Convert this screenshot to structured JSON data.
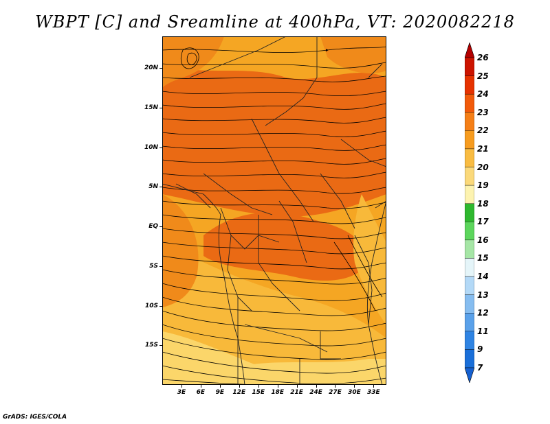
{
  "title": "WBPT [C] and Sreamline at 400hPa, VT: 2020082218",
  "credit": "GrADS: IGES/COLA",
  "map": {
    "lon_range": [
      0,
      35
    ],
    "lat_range": [
      -20,
      24
    ],
    "lat_labels": [
      {
        "lat": 20,
        "text": "20N"
      },
      {
        "lat": 15,
        "text": "15N"
      },
      {
        "lat": 10,
        "text": "10N"
      },
      {
        "lat": 5,
        "text": "5N"
      },
      {
        "lat": 0,
        "text": "EQ"
      },
      {
        "lat": -5,
        "text": "5S"
      },
      {
        "lat": -10,
        "text": "10S"
      },
      {
        "lat": -15,
        "text": "15S"
      }
    ],
    "lon_labels": [
      {
        "lon": 3,
        "text": "3E"
      },
      {
        "lon": 6,
        "text": "6E"
      },
      {
        "lon": 9,
        "text": "9E"
      },
      {
        "lon": 12,
        "text": "12E"
      },
      {
        "lon": 15,
        "text": "15E"
      },
      {
        "lon": 18,
        "text": "18E"
      },
      {
        "lon": 21,
        "text": "21E"
      },
      {
        "lon": 24,
        "text": "24E"
      },
      {
        "lon": 27,
        "text": "27E"
      },
      {
        "lon": 30,
        "text": "30E"
      },
      {
        "lon": 33,
        "text": "33E"
      }
    ],
    "field_colors": {
      "c20": "#f8b93a",
      "c21": "#f5a623",
      "c22": "#f08a1a",
      "c23": "#ea6a14",
      "c19": "#fbd66a"
    }
  },
  "colorbar": {
    "levels": [
      {
        "label": "26",
        "color": "#b30000"
      },
      {
        "label": "25",
        "color": "#cc1400"
      },
      {
        "label": "24",
        "color": "#e63200"
      },
      {
        "label": "23",
        "color": "#f25a0a"
      },
      {
        "label": "22",
        "color": "#f57f17"
      },
      {
        "label": "21",
        "color": "#f79c1f"
      },
      {
        "label": "20",
        "color": "#f9bc42"
      },
      {
        "label": "19",
        "color": "#fbd97a"
      },
      {
        "label": "18",
        "color": "#fdf3b0"
      },
      {
        "label": "17",
        "color": "#2eb82e"
      },
      {
        "label": "16",
        "color": "#5cd65c"
      },
      {
        "label": "15",
        "color": "#a6e6a6"
      },
      {
        "label": "14",
        "color": "#e5f5f9"
      },
      {
        "label": "13",
        "color": "#b3d9f7"
      },
      {
        "label": "12",
        "color": "#86bdf0"
      },
      {
        "label": "11",
        "color": "#5aa1ea"
      },
      {
        "label": "9",
        "color": "#2f84e3"
      },
      {
        "label": "7",
        "color": "#1a6fd9"
      }
    ],
    "bottom_color": "#1560d0"
  }
}
